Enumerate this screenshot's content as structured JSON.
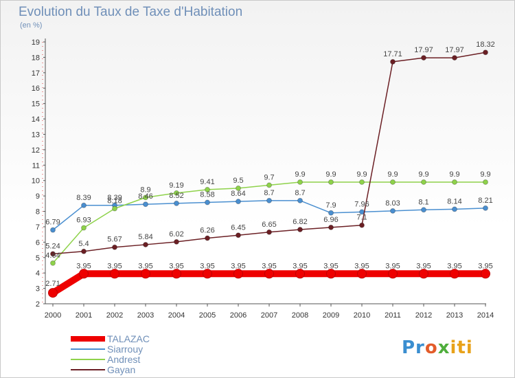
{
  "chart_data": {
    "type": "line",
    "title": "Evolution du Taux de Taxe d'Habitation",
    "subtitle": "(en %)",
    "x": [
      2000,
      2001,
      2002,
      2003,
      2004,
      2005,
      2006,
      2007,
      2008,
      2009,
      2010,
      2011,
      2012,
      2013,
      2014
    ],
    "ylim": [
      2,
      19
    ],
    "yticks": [
      2,
      3,
      4,
      5,
      6,
      7,
      8,
      9,
      10,
      11,
      12,
      13,
      14,
      15,
      16,
      17,
      18,
      19
    ],
    "grid": false,
    "legend_position": "bottom-left",
    "series": [
      {
        "name": "TALAZAC",
        "color": "#ee0000",
        "values": [
          2.71,
          3.95,
          3.95,
          3.95,
          3.95,
          3.95,
          3.95,
          3.95,
          3.95,
          3.95,
          3.95,
          3.95,
          3.95,
          3.95,
          3.95
        ],
        "labels": [
          "2.71",
          "3.95",
          "3.95",
          "3.95",
          "3.95",
          "3.95",
          "3.95",
          "3.95",
          "3.95",
          "3.95",
          "3.95",
          "3.95",
          "3.95",
          "3.95",
          "3.95"
        ]
      },
      {
        "name": "Siarrouy",
        "color": "#4a8fd0",
        "values": [
          6.79,
          8.39,
          8.39,
          8.46,
          8.52,
          8.58,
          8.64,
          8.7,
          8.7,
          7.9,
          7.96,
          8.03,
          8.1,
          8.14,
          8.21
        ],
        "labels": [
          "6.79",
          "8.39",
          "8.39",
          "8.46",
          "8.52",
          "8.58",
          "8.64",
          "8.7",
          "8.7",
          "7.9",
          "7.96",
          "8.03",
          "8.1",
          "8.14",
          "8.21"
        ]
      },
      {
        "name": "Andrest",
        "color": "#8ed24a",
        "values": [
          4.64,
          6.93,
          8.18,
          8.9,
          9.19,
          9.41,
          9.5,
          9.7,
          9.9,
          9.9,
          9.9,
          9.9,
          9.9,
          9.9,
          9.9
        ],
        "labels": [
          "4.64",
          "6.93",
          "8.18",
          "8.9",
          "9.19",
          "9.41",
          "9.5",
          "9.7",
          "9.9",
          "9.9",
          "9.9",
          "9.9",
          "9.9",
          "9.9",
          "9.9"
        ]
      },
      {
        "name": "Gayan",
        "color": "#6b1f24",
        "values": [
          5.24,
          5.4,
          5.67,
          5.84,
          6.02,
          6.26,
          6.45,
          6.65,
          6.82,
          6.96,
          7.1,
          17.71,
          17.97,
          17.97,
          18.32
        ],
        "labels": [
          "5.24",
          "5.4",
          "5.67",
          "5.84",
          "6.02",
          "6.26",
          "6.45",
          "6.65",
          "6.82",
          "6.96",
          "7.1",
          "17.71",
          "17.97",
          "17.97",
          "18.32"
        ]
      }
    ]
  },
  "logo": {
    "parts": [
      "Pr",
      "o",
      "x",
      "iti"
    ]
  }
}
